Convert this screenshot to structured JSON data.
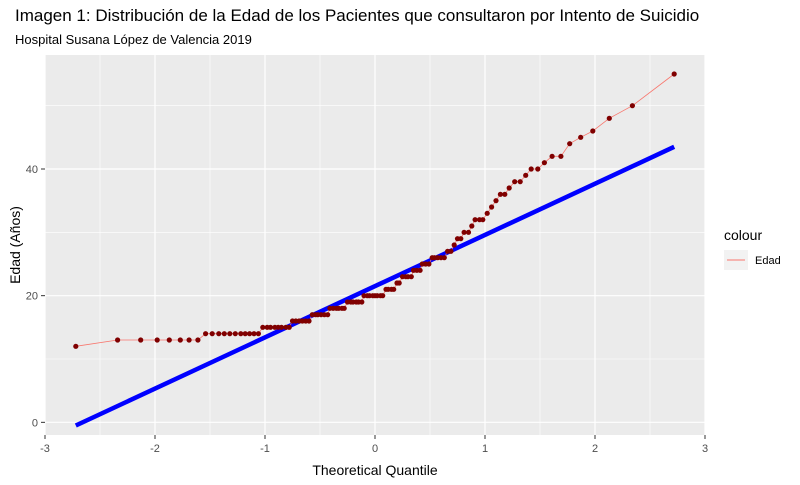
{
  "chart_data": {
    "type": "scatter",
    "title": "Imagen 1: Distribución de la Edad de los Pacientes que consultaron por Intento de Suicidio",
    "subtitle": "Hospital Susana López de Valencia 2019",
    "xlabel": "Theoretical Quantile",
    "ylabel": "Edad (Años)",
    "xlim": [
      -3,
      3
    ],
    "ylim": [
      -2,
      58
    ],
    "x_ticks": [
      -3,
      -2,
      -1,
      0,
      1,
      2,
      3
    ],
    "y_ticks": [
      0,
      20,
      40
    ],
    "grid": true,
    "legend": {
      "title": "colour",
      "position": "right",
      "entries": [
        "Edad"
      ]
    },
    "colors": {
      "points": "#800000",
      "line": "#f8766d",
      "reference": "#0000ff",
      "panel": "#ebebeb",
      "grid": "#ffffff"
    },
    "series": [
      {
        "name": "Edad",
        "points": [
          [
            -2.72,
            12
          ],
          [
            -2.34,
            13
          ],
          [
            -2.13,
            13
          ],
          [
            -1.98,
            13
          ],
          [
            -1.87,
            13
          ],
          [
            -1.77,
            13
          ],
          [
            -1.69,
            13
          ],
          [
            -1.61,
            13
          ],
          [
            -1.54,
            14
          ],
          [
            -1.48,
            14
          ],
          [
            -1.42,
            14
          ],
          [
            -1.37,
            14
          ],
          [
            -1.32,
            14
          ],
          [
            -1.27,
            14
          ],
          [
            -1.22,
            14
          ],
          [
            -1.18,
            14
          ],
          [
            -1.14,
            14
          ],
          [
            -1.1,
            14
          ],
          [
            -1.06,
            14
          ],
          [
            -1.02,
            15
          ],
          [
            -0.98,
            15
          ],
          [
            -0.95,
            15
          ],
          [
            -0.91,
            15
          ],
          [
            -0.88,
            15
          ],
          [
            -0.85,
            15
          ],
          [
            -0.81,
            15
          ],
          [
            -0.78,
            15
          ],
          [
            -0.75,
            16
          ],
          [
            -0.72,
            16
          ],
          [
            -0.69,
            16
          ],
          [
            -0.66,
            16
          ],
          [
            -0.63,
            16
          ],
          [
            -0.6,
            16
          ],
          [
            -0.57,
            17
          ],
          [
            -0.54,
            17
          ],
          [
            -0.52,
            17
          ],
          [
            -0.49,
            17
          ],
          [
            -0.46,
            17
          ],
          [
            -0.43,
            17
          ],
          [
            -0.41,
            18
          ],
          [
            -0.38,
            18
          ],
          [
            -0.35,
            18
          ],
          [
            -0.33,
            18
          ],
          [
            -0.3,
            18
          ],
          [
            -0.28,
            18
          ],
          [
            -0.25,
            19
          ],
          [
            -0.22,
            19
          ],
          [
            -0.2,
            19
          ],
          [
            -0.17,
            19
          ],
          [
            -0.15,
            19
          ],
          [
            -0.12,
            19
          ],
          [
            -0.1,
            20
          ],
          [
            -0.07,
            20
          ],
          [
            -0.05,
            20
          ],
          [
            -0.02,
            20
          ],
          [
            0.0,
            20
          ],
          [
            0.02,
            20
          ],
          [
            0.05,
            20
          ],
          [
            0.07,
            20
          ],
          [
            0.1,
            21
          ],
          [
            0.12,
            21
          ],
          [
            0.15,
            21
          ],
          [
            0.17,
            21
          ],
          [
            0.2,
            22
          ],
          [
            0.22,
            22
          ],
          [
            0.25,
            23
          ],
          [
            0.28,
            23
          ],
          [
            0.3,
            23
          ],
          [
            0.33,
            23
          ],
          [
            0.35,
            24
          ],
          [
            0.38,
            24
          ],
          [
            0.41,
            24
          ],
          [
            0.43,
            25
          ],
          [
            0.46,
            25
          ],
          [
            0.49,
            25
          ],
          [
            0.52,
            26
          ],
          [
            0.54,
            26
          ],
          [
            0.57,
            26
          ],
          [
            0.6,
            26
          ],
          [
            0.63,
            26
          ],
          [
            0.66,
            27
          ],
          [
            0.69,
            27
          ],
          [
            0.72,
            28
          ],
          [
            0.75,
            29
          ],
          [
            0.78,
            29
          ],
          [
            0.81,
            30
          ],
          [
            0.85,
            30
          ],
          [
            0.88,
            31
          ],
          [
            0.91,
            32
          ],
          [
            0.95,
            32
          ],
          [
            0.98,
            32
          ],
          [
            1.02,
            33
          ],
          [
            1.06,
            34
          ],
          [
            1.1,
            35
          ],
          [
            1.14,
            36
          ],
          [
            1.18,
            36
          ],
          [
            1.22,
            37
          ],
          [
            1.27,
            38
          ],
          [
            1.32,
            38
          ],
          [
            1.37,
            39
          ],
          [
            1.42,
            40
          ],
          [
            1.48,
            40
          ],
          [
            1.54,
            41
          ],
          [
            1.61,
            42
          ],
          [
            1.69,
            42
          ],
          [
            1.77,
            44
          ],
          [
            1.87,
            45
          ],
          [
            1.98,
            46
          ],
          [
            2.13,
            48
          ],
          [
            2.34,
            50
          ],
          [
            2.72,
            55
          ]
        ]
      }
    ],
    "reference_line": {
      "from": [
        -2.72,
        -0.5
      ],
      "to": [
        2.72,
        43.5
      ]
    }
  }
}
